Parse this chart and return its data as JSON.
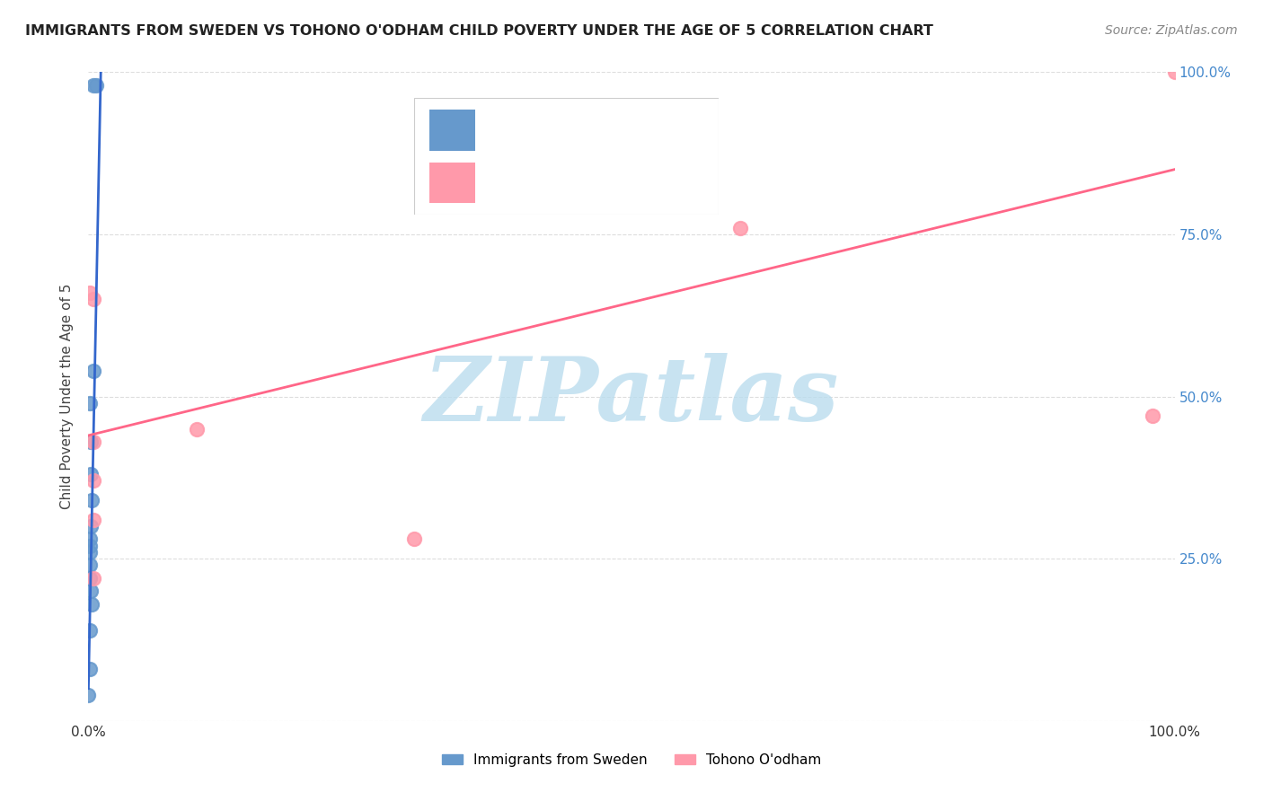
{
  "title": "IMMIGRANTS FROM SWEDEN VS TOHONO O'ODHAM CHILD POVERTY UNDER THE AGE OF 5 CORRELATION CHART",
  "source": "Source: ZipAtlas.com",
  "ylabel": "Child Poverty Under the Age of 5",
  "xlim": [
    0,
    1.0
  ],
  "ylim": [
    0,
    1.0
  ],
  "ytick_labels_right": [
    "25.0%",
    "50.0%",
    "75.0%",
    "100.0%"
  ],
  "yticks_right": [
    0.25,
    0.5,
    0.75,
    1.0
  ],
  "blue_scatter_x": [
    0.005,
    0.007,
    0.005,
    0.001,
    0.002,
    0.002,
    0.003,
    0.002,
    0.001,
    0.001,
    0.001,
    0.001,
    0.001,
    0.002,
    0.003,
    0.001,
    0.001,
    0.0
  ],
  "blue_scatter_y": [
    0.98,
    0.98,
    0.54,
    0.49,
    0.43,
    0.38,
    0.34,
    0.3,
    0.28,
    0.27,
    0.26,
    0.24,
    0.22,
    0.2,
    0.18,
    0.14,
    0.08,
    0.04
  ],
  "pink_scatter_x": [
    0.001,
    0.005,
    0.3,
    0.005,
    0.1,
    0.005,
    0.005,
    0.6,
    0.005,
    0.98,
    1.0
  ],
  "pink_scatter_y": [
    0.66,
    0.65,
    0.28,
    0.43,
    0.45,
    0.37,
    0.31,
    0.76,
    0.22,
    0.47,
    1.0
  ],
  "blue_line_y_start": 0.05,
  "blue_slope": 95.0,
  "pink_line_x_start": 0.0,
  "pink_line_x_end": 1.0,
  "pink_line_y_start": 0.44,
  "pink_line_y_end": 0.85,
  "blue_color": "#6699CC",
  "blue_line_color": "#3366CC",
  "pink_color": "#FF99AA",
  "pink_line_color": "#FF6688",
  "watermark_color": "#BBDDEE",
  "grid_color": "#DDDDDD",
  "title_color": "#222222",
  "source_color": "#888888",
  "axis_label_color": "#444444",
  "right_tick_color": "#4488CC",
  "legend_R_color": "#3366CC",
  "legend_N_color": "#336699"
}
